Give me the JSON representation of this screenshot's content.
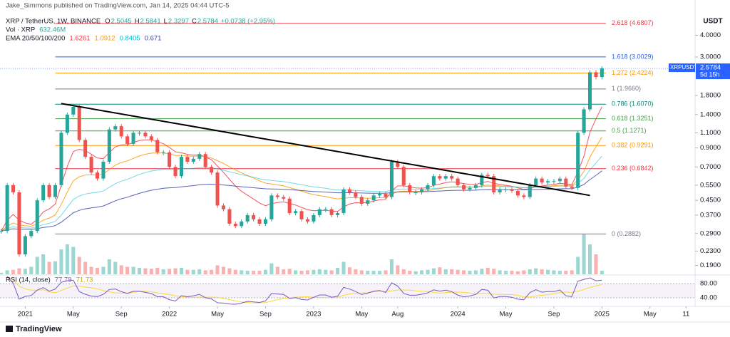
{
  "published": "Jake_Simmons published on TradingView.com, Jan 14, 2025 04:44 UTC-5",
  "chart_data": {
    "type": "candlestick",
    "symbol": "XRP / TetherUS, 1W, BINANCE",
    "ohlc": [
      {
        "label": "O",
        "value": 2.5045
      },
      {
        "label": "H",
        "value": 2.5841
      },
      {
        "label": "L",
        "value": 2.3297
      },
      {
        "label": "C",
        "value": 2.5784
      }
    ],
    "change": "+0.0738 (+2.95%)",
    "volume_label": "Vol · XRP",
    "volume_last": "632.46M",
    "closes": [
      0.3,
      0.55,
      0.5,
      0.22,
      0.28,
      0.3,
      0.45,
      0.55,
      0.47,
      0.55,
      1.1,
      1.4,
      1.55,
      1.0,
      0.8,
      0.65,
      0.6,
      0.75,
      1.15,
      1.2,
      1.05,
      0.95,
      1.1,
      1.1,
      1.05,
      1.0,
      0.85,
      0.85,
      0.7,
      0.62,
      0.8,
      0.75,
      0.78,
      0.83,
      0.7,
      0.65,
      0.42,
      0.4,
      0.33,
      0.32,
      0.34,
      0.37,
      0.35,
      0.33,
      0.35,
      0.48,
      0.47,
      0.46,
      0.38,
      0.39,
      0.35,
      0.34,
      0.37,
      0.4,
      0.4,
      0.37,
      0.38,
      0.52,
      0.5,
      0.47,
      0.43,
      0.45,
      0.48,
      0.49,
      0.47,
      0.75,
      0.7,
      0.55,
      0.5,
      0.5,
      0.52,
      0.55,
      0.62,
      0.6,
      0.62,
      0.6,
      0.55,
      0.52,
      0.53,
      0.55,
      0.63,
      0.62,
      0.5,
      0.52,
      0.52,
      0.51,
      0.48,
      0.47,
      0.55,
      0.6,
      0.57,
      0.58,
      0.58,
      0.6,
      0.54,
      0.53,
      1.1,
      1.5,
      2.45,
      2.3,
      2.58
    ],
    "volume": [
      300,
      800,
      900,
      1200,
      1100,
      1500,
      3500,
      4000,
      2500,
      2600,
      5000,
      6000,
      5500,
      3500,
      2500,
      1500,
      1300,
      1500,
      3000,
      2500,
      1800,
      1500,
      1500,
      1300,
      1200,
      1100,
      1300,
      1000,
      1100,
      1200,
      1300,
      900,
      900,
      1000,
      800,
      900,
      1800,
      1500,
      1200,
      900,
      800,
      700,
      700,
      700,
      900,
      2200,
      1500,
      1000,
      1100,
      800,
      700,
      800,
      900,
      1000,
      900,
      800,
      1300,
      2500,
      1400,
      1000,
      800,
      700,
      700,
      700,
      800,
      3000,
      1800,
      1000,
      700,
      600,
      800,
      900,
      1200,
      1400,
      1000,
      1000,
      900,
      800,
      700,
      800,
      1100,
      1300,
      1100,
      800,
      700,
      700,
      600,
      800,
      1000,
      1200,
      1000,
      900,
      800,
      700,
      700,
      800,
      3500,
      8000,
      6000,
      4000,
      700
    ],
    "volume_ylim": [
      0,
      10000
    ],
    "xlim": [
      -0.2,
      115.5
    ],
    "xticks": [
      {
        "value": 4,
        "label": "2021"
      },
      {
        "value": 12,
        "label": "May"
      },
      {
        "value": 20,
        "label": "Sep"
      },
      {
        "value": 28,
        "label": "2022"
      },
      {
        "value": 36,
        "label": "May"
      },
      {
        "value": 44,
        "label": "Sep"
      },
      {
        "value": 52,
        "label": "2023"
      },
      {
        "value": 60,
        "label": "May"
      },
      {
        "value": 66,
        "label": "Aug"
      },
      {
        "value": 76,
        "label": "2024"
      },
      {
        "value": 84,
        "label": "May"
      },
      {
        "value": 92,
        "label": "Sep"
      },
      {
        "value": 100,
        "label": "2025"
      },
      {
        "value": 108,
        "label": "May"
      },
      {
        "value": 114,
        "label": "11"
      }
    ],
    "ylim": [
      0.169,
      6.38
    ],
    "log_scale": true,
    "y_unit": "USDT",
    "yticks": [
      {
        "value": 4,
        "label": "4.0000"
      },
      {
        "value": 3,
        "label": "3.0000"
      },
      {
        "value": 1.8,
        "label": "1.8000"
      },
      {
        "value": 1.4,
        "label": "1.4000"
      },
      {
        "value": 1.1,
        "label": "1.1000"
      },
      {
        "value": 0.9,
        "label": "0.9000"
      },
      {
        "value": 0.7,
        "label": "0.7000"
      },
      {
        "value": 0.55,
        "label": "0.5500"
      },
      {
        "value": 0.45,
        "label": "0.4500"
      },
      {
        "value": 0.37,
        "label": "0.3700"
      },
      {
        "value": 0.29,
        "label": "0.2900"
      },
      {
        "value": 0.23,
        "label": "0.2300"
      },
      {
        "value": 0.19,
        "label": "0.1900"
      }
    ],
    "up_color": "#26a69a",
    "down_color": "#ef5350",
    "ema": {
      "label": "EMA 20/50/100/200",
      "lines": [
        {
          "period": 20,
          "value": 1.6261,
          "color": "#f23645"
        },
        {
          "period": 50,
          "value": 1.0912,
          "color": "#ff9800"
        },
        {
          "period": 100,
          "value": 0.8405,
          "color": "#00bcd4"
        },
        {
          "period": 200,
          "value": 0.671,
          "color": "#3949ab"
        }
      ]
    },
    "fib": [
      {
        "label": "2.618 (4.6807)",
        "value": 4.6807,
        "color": "#f23645"
      },
      {
        "label": "1.618 (3.0029)",
        "value": 3.0029,
        "color": "#2962ff"
      },
      {
        "label": "1.272 (2.4224)",
        "value": 2.4224,
        "color": "#ff9800"
      },
      {
        "label": "1 (1.9660)",
        "value": 1.966,
        "color": "#787b86"
      },
      {
        "label": "0.786 (1.6070)",
        "value": 1.607,
        "color": "#00897b"
      },
      {
        "label": "0.618 (1.3251)",
        "value": 1.3251,
        "color": "#43a047"
      },
      {
        "label": "0.5 (1.1271)",
        "value": 1.1271,
        "color": "#43a047"
      },
      {
        "label": "0.382 (0.9291)",
        "value": 0.9291,
        "color": "#ff9800"
      },
      {
        "label": "0.236 (0.6842)",
        "value": 0.6842,
        "color": "#f23645"
      },
      {
        "label": "0 (0.2882)",
        "value": 0.2882,
        "color": "#787b86"
      }
    ],
    "trendline": {
      "x": [
        10,
        98
      ],
      "y": [
        1.62,
        0.48
      ],
      "color": "#000000"
    },
    "last": {
      "symbol": "XRPUSDT",
      "price": 2.5784,
      "countdown": "5d 15h",
      "color": "#2962ff"
    },
    "rsi": {
      "label": "RSI (14, close)",
      "period": 14,
      "value": 77.79,
      "ma_value": 71.73,
      "color": "#7e57c2",
      "ma_color": "#fdd835",
      "ylim": [
        20,
        100
      ],
      "yticks": [
        {
          "value": 80,
          "label": "80.00"
        },
        {
          "value": 40,
          "label": "40.00"
        }
      ]
    }
  },
  "footer": {
    "logo": "TradingView"
  }
}
